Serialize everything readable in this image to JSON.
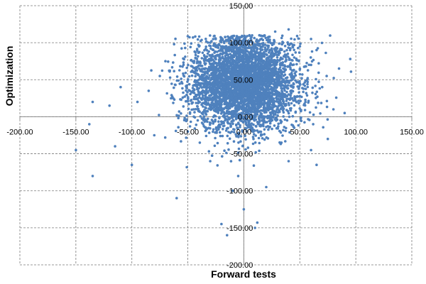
{
  "chart_data": {
    "type": "scatter",
    "xlabel": "Forward tests",
    "ylabel": "Optimization",
    "xlim": [
      -200,
      150
    ],
    "ylim": [
      -200,
      150
    ],
    "x_ticks": [
      "-200.00",
      "-150.00",
      "-100.00",
      "-50.00",
      "0.00",
      "50.00",
      "100.00",
      "150.00"
    ],
    "y_ticks": [
      "150.00",
      "100.00",
      "50.00",
      "0.00",
      "-50.00",
      "-100.00",
      "-150.00",
      "-200.00"
    ],
    "grid": true,
    "marker_color": "#4F81BD",
    "points": [
      {
        "x": 0,
        "y": 50
      },
      {
        "x": -10,
        "y": 65
      },
      {
        "x": 12,
        "y": 40
      },
      {
        "x": 20,
        "y": 70
      },
      {
        "x": -25,
        "y": 30
      },
      {
        "x": 5,
        "y": 85
      },
      {
        "x": -5,
        "y": 15
      },
      {
        "x": 30,
        "y": 55
      },
      {
        "x": -35,
        "y": 60
      },
      {
        "x": 15,
        "y": 95
      },
      {
        "x": -15,
        "y": 90
      },
      {
        "x": 40,
        "y": 30
      },
      {
        "x": -45,
        "y": 10
      },
      {
        "x": 25,
        "y": 0
      },
      {
        "x": -20,
        "y": -10
      },
      {
        "x": 8,
        "y": -20
      },
      {
        "x": 45,
        "y": 80
      },
      {
        "x": -55,
        "y": 45
      },
      {
        "x": 35,
        "y": 100
      },
      {
        "x": -30,
        "y": 100
      },
      {
        "x": 50,
        "y": 45
      },
      {
        "x": 55,
        "y": 20
      },
      {
        "x": -65,
        "y": 25
      },
      {
        "x": -75,
        "y": 55
      },
      {
        "x": 60,
        "y": 70
      },
      {
        "x": -85,
        "y": 35
      },
      {
        "x": 70,
        "y": 40
      },
      {
        "x": -95,
        "y": 20
      },
      {
        "x": 80,
        "y": 10
      },
      {
        "x": -110,
        "y": 40
      },
      {
        "x": 95,
        "y": 78
      },
      {
        "x": 90,
        "y": 5
      },
      {
        "x": -120,
        "y": 15
      },
      {
        "x": -135,
        "y": 20
      },
      {
        "x": -138,
        "y": -10
      },
      {
        "x": -150,
        "y": -45
      },
      {
        "x": -135,
        "y": -80
      },
      {
        "x": -115,
        "y": -40
      },
      {
        "x": -100,
        "y": -65
      },
      {
        "x": -60,
        "y": -110
      },
      {
        "x": -30,
        "y": -60
      },
      {
        "x": -10,
        "y": -100
      },
      {
        "x": 0,
        "y": -125
      },
      {
        "x": -20,
        "y": -145
      },
      {
        "x": -15,
        "y": -160
      },
      {
        "x": 10,
        "y": -150
      },
      {
        "x": 12,
        "y": -143
      },
      {
        "x": 20,
        "y": -95
      },
      {
        "x": 40,
        "y": -60
      },
      {
        "x": 60,
        "y": -45
      },
      {
        "x": 65,
        "y": -65
      },
      {
        "x": -5,
        "y": -80
      },
      {
        "x": 28,
        "y": 115
      },
      {
        "x": 40,
        "y": 118
      },
      {
        "x": 60,
        "y": 105
      },
      {
        "x": -40,
        "y": 95
      },
      {
        "x": 5,
        "y": 110
      },
      {
        "x": -50,
        "y": -20
      },
      {
        "x": 45,
        "y": -15
      },
      {
        "x": 75,
        "y": -30
      },
      {
        "x": -80,
        "y": -25
      },
      {
        "x": 85,
        "y": 65
      },
      {
        "x": -70,
        "y": 75
      },
      {
        "x": 65,
        "y": 90
      }
    ],
    "generated": {
      "count": 4200,
      "center": {
        "x": 0,
        "y": 45
      },
      "spread": {
        "x": 24,
        "y": 32
      },
      "seed": 7
    }
  }
}
